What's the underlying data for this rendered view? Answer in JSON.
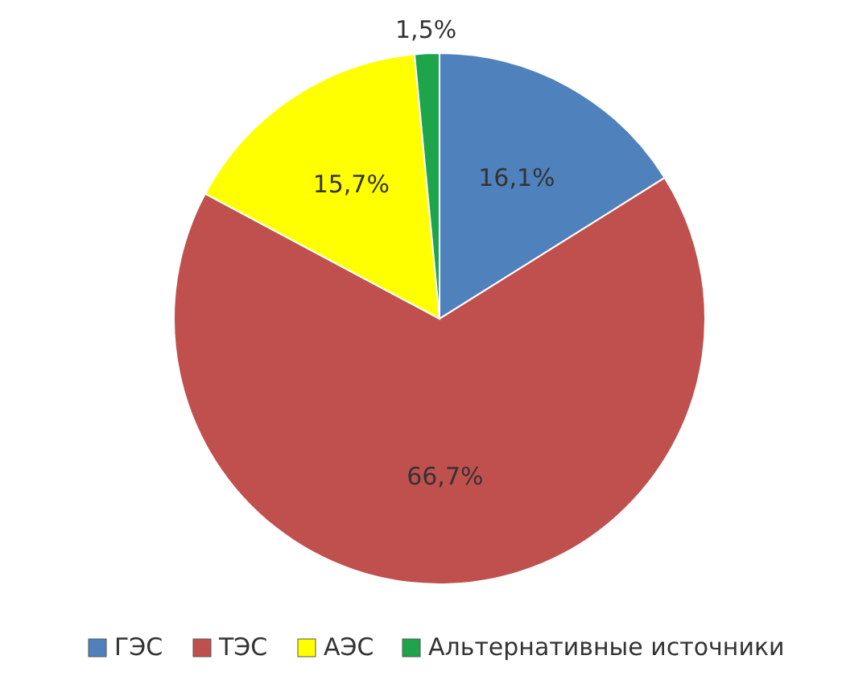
{
  "chart_data": {
    "type": "pie",
    "categories": [
      "ГЭС",
      "ТЭС",
      "АЭС",
      "Альтернативные источники"
    ],
    "values": [
      16.1,
      66.7,
      15.7,
      1.5
    ],
    "value_labels": [
      "16,1%",
      "66,7%",
      "15,7%",
      "1,5%"
    ],
    "colors": [
      "#4f81bd",
      "#c0504d",
      "#ffff00",
      "#1ea44a"
    ],
    "legend": "bottom"
  }
}
